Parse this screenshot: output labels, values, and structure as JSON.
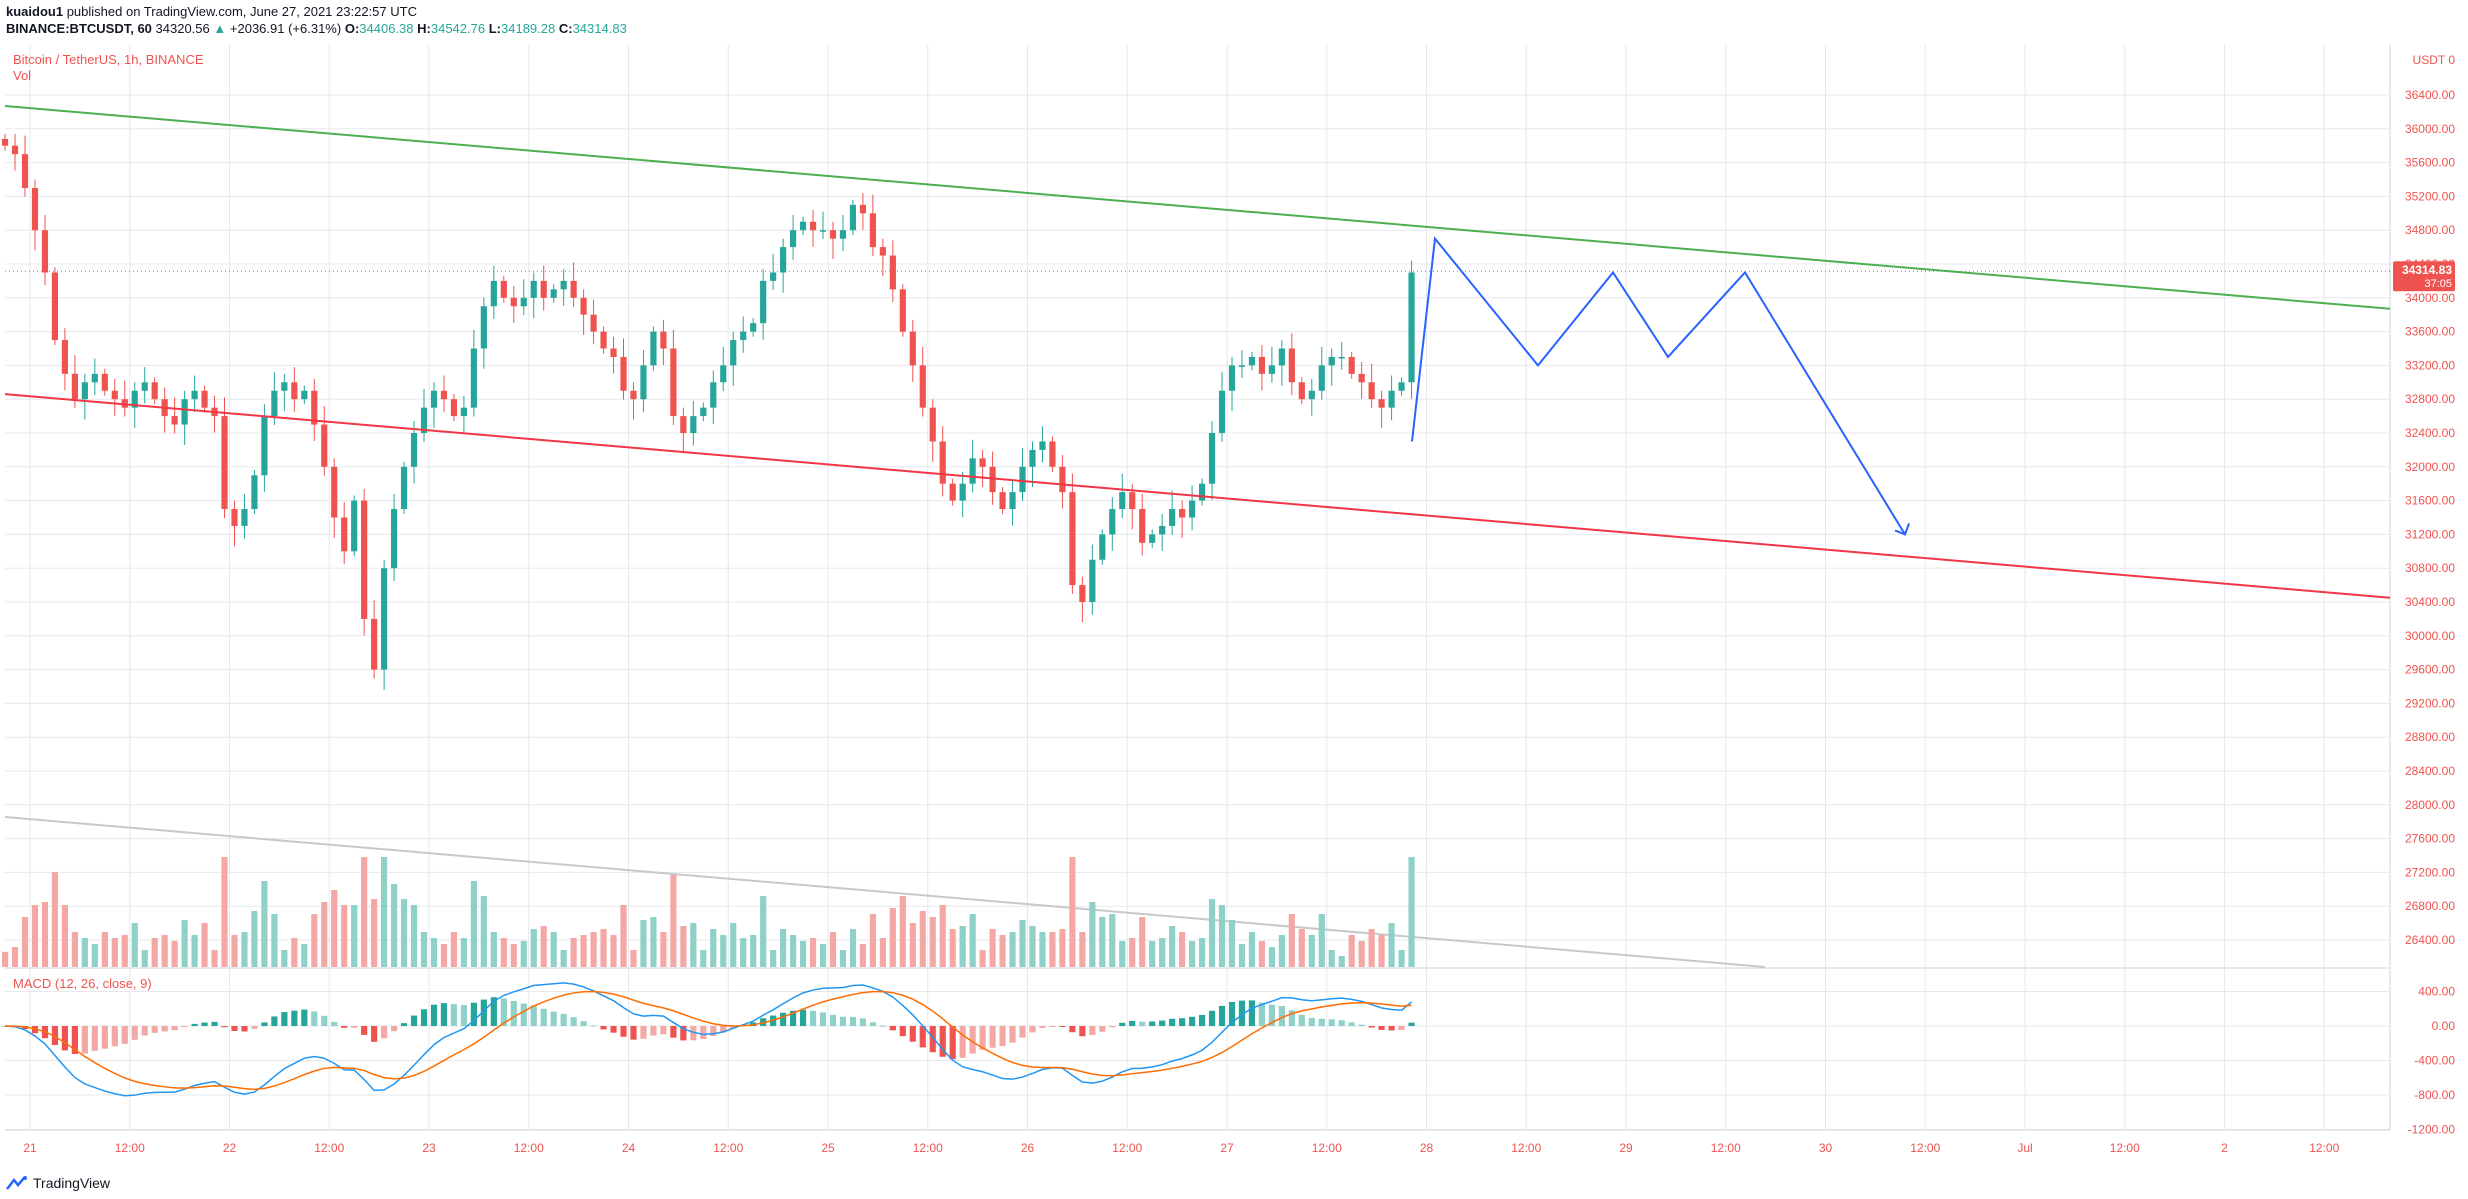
{
  "header": {
    "author": "kuaidou1",
    "published_text": " published on TradingView.com, June 27, 2021 23:22:57 UTC",
    "symbol": "BINANCE:BTCUSDT, 60",
    "price": "34320.56",
    "change_arrow": "▲",
    "change": "+2036.91 (+6.31%)",
    "o_label": "O:",
    "o_value": "34406.38",
    "h_label": "H:",
    "h_value": "34542.76",
    "l_label": "L:",
    "l_value": "34189.28",
    "c_label": "C:",
    "c_value": "34314.83"
  },
  "legend": {
    "title": "Bitcoin / TetherUS, 1h, BINANCE",
    "vol": "Vol",
    "macd": "MACD (12, 26, close, 9)"
  },
  "axis": {
    "currency": "USDT",
    "price_ticks": [
      "36400.00",
      "36000.00",
      "35600.00",
      "35200.00",
      "34800.00",
      "34400.00",
      "34000.00",
      "33600.00",
      "33200.00",
      "32800.00",
      "32400.00",
      "32000.00",
      "31600.00",
      "31200.00",
      "30800.00",
      "30400.00",
      "30000.00",
      "29600.00",
      "29200.00",
      "28800.00",
      "28400.00",
      "28000.00",
      "27600.00",
      "27200.00",
      "26800.00",
      "26400.00"
    ],
    "macd_ticks": [
      "400.00",
      "0.00",
      "-400.00",
      "-800.00",
      "-1200.00"
    ],
    "time_labels": [
      "21",
      "12:00",
      "22",
      "12:00",
      "23",
      "12:00",
      "24",
      "12:00",
      "25",
      "12:00",
      "26",
      "12:00",
      "27",
      "12:00",
      "28",
      "12:00",
      "29",
      "12:00",
      "30",
      "12:00",
      "Jul",
      "12:00",
      "2",
      "12:00"
    ],
    "current_price": "34314.83",
    "countdown": "37:05"
  },
  "footer": {
    "brand": "TradingView"
  },
  "chart_data": {
    "type": "candlestick",
    "symbol": "BINANCE:BTCUSDT",
    "timeframe": "1h",
    "y_range": [
      26000,
      36700
    ],
    "macd_range": [
      -1200,
      600
    ],
    "x_range_days": [
      "Jun 21",
      "Jul 2"
    ],
    "current_price": 34314.83,
    "closes": [
      35800,
      35700,
      35300,
      34800,
      34300,
      33500,
      33100,
      32800,
      33000,
      33100,
      32900,
      32800,
      32700,
      32900,
      33000,
      32800,
      32600,
      32500,
      32800,
      32900,
      32700,
      32600,
      31500,
      31300,
      31500,
      31900,
      32600,
      32900,
      33000,
      32800,
      32900,
      32500,
      32000,
      31400,
      31000,
      31600,
      30200,
      29600,
      30800,
      31500,
      32000,
      32400,
      32700,
      32900,
      32800,
      32600,
      32700,
      33400,
      33900,
      34200,
      34000,
      33900,
      34000,
      34200,
      34000,
      34100,
      34200,
      34000,
      33800,
      33600,
      33400,
      33300,
      32900,
      32800,
      33200,
      33600,
      33400,
      32600,
      32400,
      32600,
      32700,
      33000,
      33200,
      33500,
      33600,
      33700,
      34200,
      34300,
      34600,
      34800,
      34900,
      34800,
      34800,
      34700,
      34800,
      35100,
      35000,
      34600,
      34500,
      34100,
      33600,
      33200,
      32700,
      32300,
      31800,
      31600,
      31800,
      32100,
      32000,
      31700,
      31500,
      31700,
      32000,
      32200,
      32300,
      32000,
      31700,
      30600,
      30400,
      30900,
      31200,
      31500,
      31700,
      31500,
      31100,
      31200,
      31300,
      31500,
      31400,
      31600,
      31800,
      32400,
      32900,
      33200,
      33200,
      33300,
      33100,
      33200,
      33400,
      33000,
      32800,
      32900,
      33200,
      33300,
      33300,
      33100,
      33000,
      32800,
      32700,
      32900,
      33000,
      34300
    ],
    "annotations": {
      "upper_trendline": {
        "color": "#4caf50",
        "from": {
          "x_day": 0,
          "price": 36270
        },
        "to": {
          "x_day": 12.0,
          "price": 33870
        }
      },
      "lower_trendline": {
        "color": "#f23645",
        "from": {
          "x_day": 0,
          "price": 32860
        },
        "to": {
          "x_day": 12.0,
          "price": 30450
        }
      },
      "volume_trendline": {
        "color": "#c0c0c0"
      },
      "projection": {
        "color": "#2962ff",
        "path_prices": [
          32300,
          34700,
          33200,
          34300,
          33300,
          34300,
          31200
        ]
      }
    }
  },
  "colors": {
    "up": "#26a69a",
    "down": "#ef5350",
    "up_vol": "#8fd0c8",
    "down_vol": "#f4a8a5",
    "grid": "#e6e8ec",
    "macd_line": "#2196f3",
    "signal_line": "#ff6d00",
    "price_tag": "#ef5350"
  }
}
